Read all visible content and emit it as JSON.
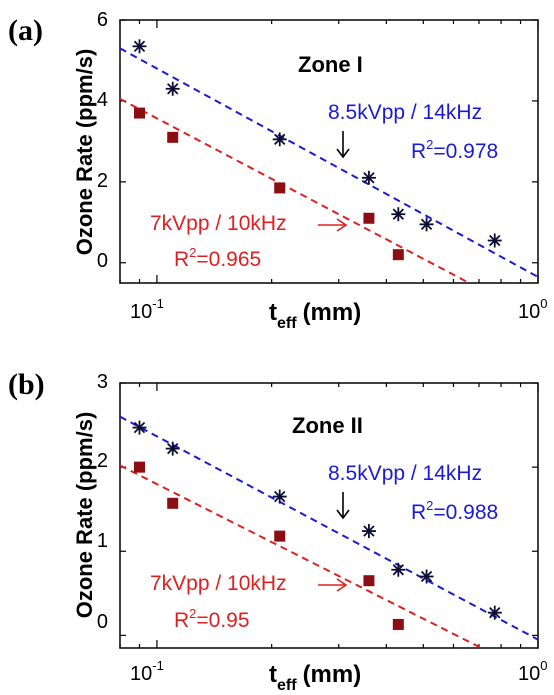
{
  "colors": {
    "blue": "#1a1ad8",
    "red": "#e02020",
    "square": "#8b0f12",
    "star": "#0d0d33",
    "axis": "#000000"
  },
  "chart_data": [
    {
      "type": "scatter",
      "panel_label": "(a)",
      "zone_label": "Zone I",
      "ylabel": "Ozone Rate (ppm/s)",
      "xlabel": "t",
      "xlabel_sub": "eff",
      "xlabel_unit": "(mm)",
      "xscale": "log",
      "xlim": [
        0.08,
        1.0
      ],
      "ylim": [
        -0.5,
        6
      ],
      "yticks": [
        "0",
        "2",
        "4",
        "6"
      ],
      "xticks": [
        {
          "base": "10",
          "exp": "-1"
        },
        {
          "base": "10",
          "exp": "0"
        }
      ],
      "series": [
        {
          "name": "8.5kVpp / 14kHz",
          "r2_label": "R",
          "r2_sup": "2",
          "r2_value": "=0.978",
          "marker": "star",
          "x": [
            0.09,
            0.11,
            0.21,
            0.36,
            0.43,
            0.51,
            0.77
          ],
          "y": [
            5.35,
            4.3,
            3.05,
            2.1,
            1.2,
            0.95,
            0.55
          ],
          "fit": {
            "x0": 0.08,
            "y0": 5.3,
            "x1": 1.0,
            "y1": -0.35
          }
        },
        {
          "name": "7kVpp / 10kHz",
          "r2_label": "R",
          "r2_sup": "2",
          "r2_value": "=0.965",
          "marker": "square",
          "x": [
            0.09,
            0.11,
            0.21,
            0.36,
            0.43
          ],
          "y": [
            3.7,
            3.1,
            1.85,
            1.1,
            0.2
          ],
          "fit": {
            "x0": 0.08,
            "y0": 4.05,
            "x1": 0.66,
            "y1": -0.5
          }
        }
      ],
      "arrows": [
        "down",
        "right"
      ]
    },
    {
      "type": "scatter",
      "panel_label": "(b)",
      "zone_label": "Zone II",
      "ylabel": "Ozone Rate (ppm/s)",
      "xlabel": "t",
      "xlabel_sub": "eff",
      "xlabel_unit": "(mm)",
      "xscale": "log",
      "xlim": [
        0.08,
        1.0
      ],
      "ylim": [
        -0.15,
        3
      ],
      "yticks": [
        "0",
        "1",
        "2",
        "3"
      ],
      "xticks": [
        {
          "base": "10",
          "exp": "-1"
        },
        {
          "base": "10",
          "exp": "0"
        }
      ],
      "series": [
        {
          "name": "8.5kVpp / 14kHz",
          "r2_label": "R",
          "r2_sup": "2",
          "r2_value": "=0.988",
          "marker": "star",
          "x": [
            0.09,
            0.11,
            0.21,
            0.36,
            0.43,
            0.51,
            0.77
          ],
          "y": [
            2.47,
            2.22,
            1.65,
            1.24,
            0.78,
            0.7,
            0.27
          ],
          "fit": {
            "x0": 0.08,
            "y0": 2.6,
            "x1": 1.0,
            "y1": -0.05
          }
        },
        {
          "name": "7kVpp / 10kHz",
          "r2_label": "R",
          "r2_sup": "2",
          "r2_value": "=0.95",
          "marker": "square",
          "x": [
            0.09,
            0.11,
            0.21,
            0.36,
            0.43
          ],
          "y": [
            2.0,
            1.57,
            1.18,
            0.65,
            0.13
          ],
          "fit": {
            "x0": 0.08,
            "y0": 2.02,
            "x1": 0.71,
            "y1": -0.15
          }
        }
      ],
      "arrows": [
        "down",
        "right"
      ]
    }
  ]
}
